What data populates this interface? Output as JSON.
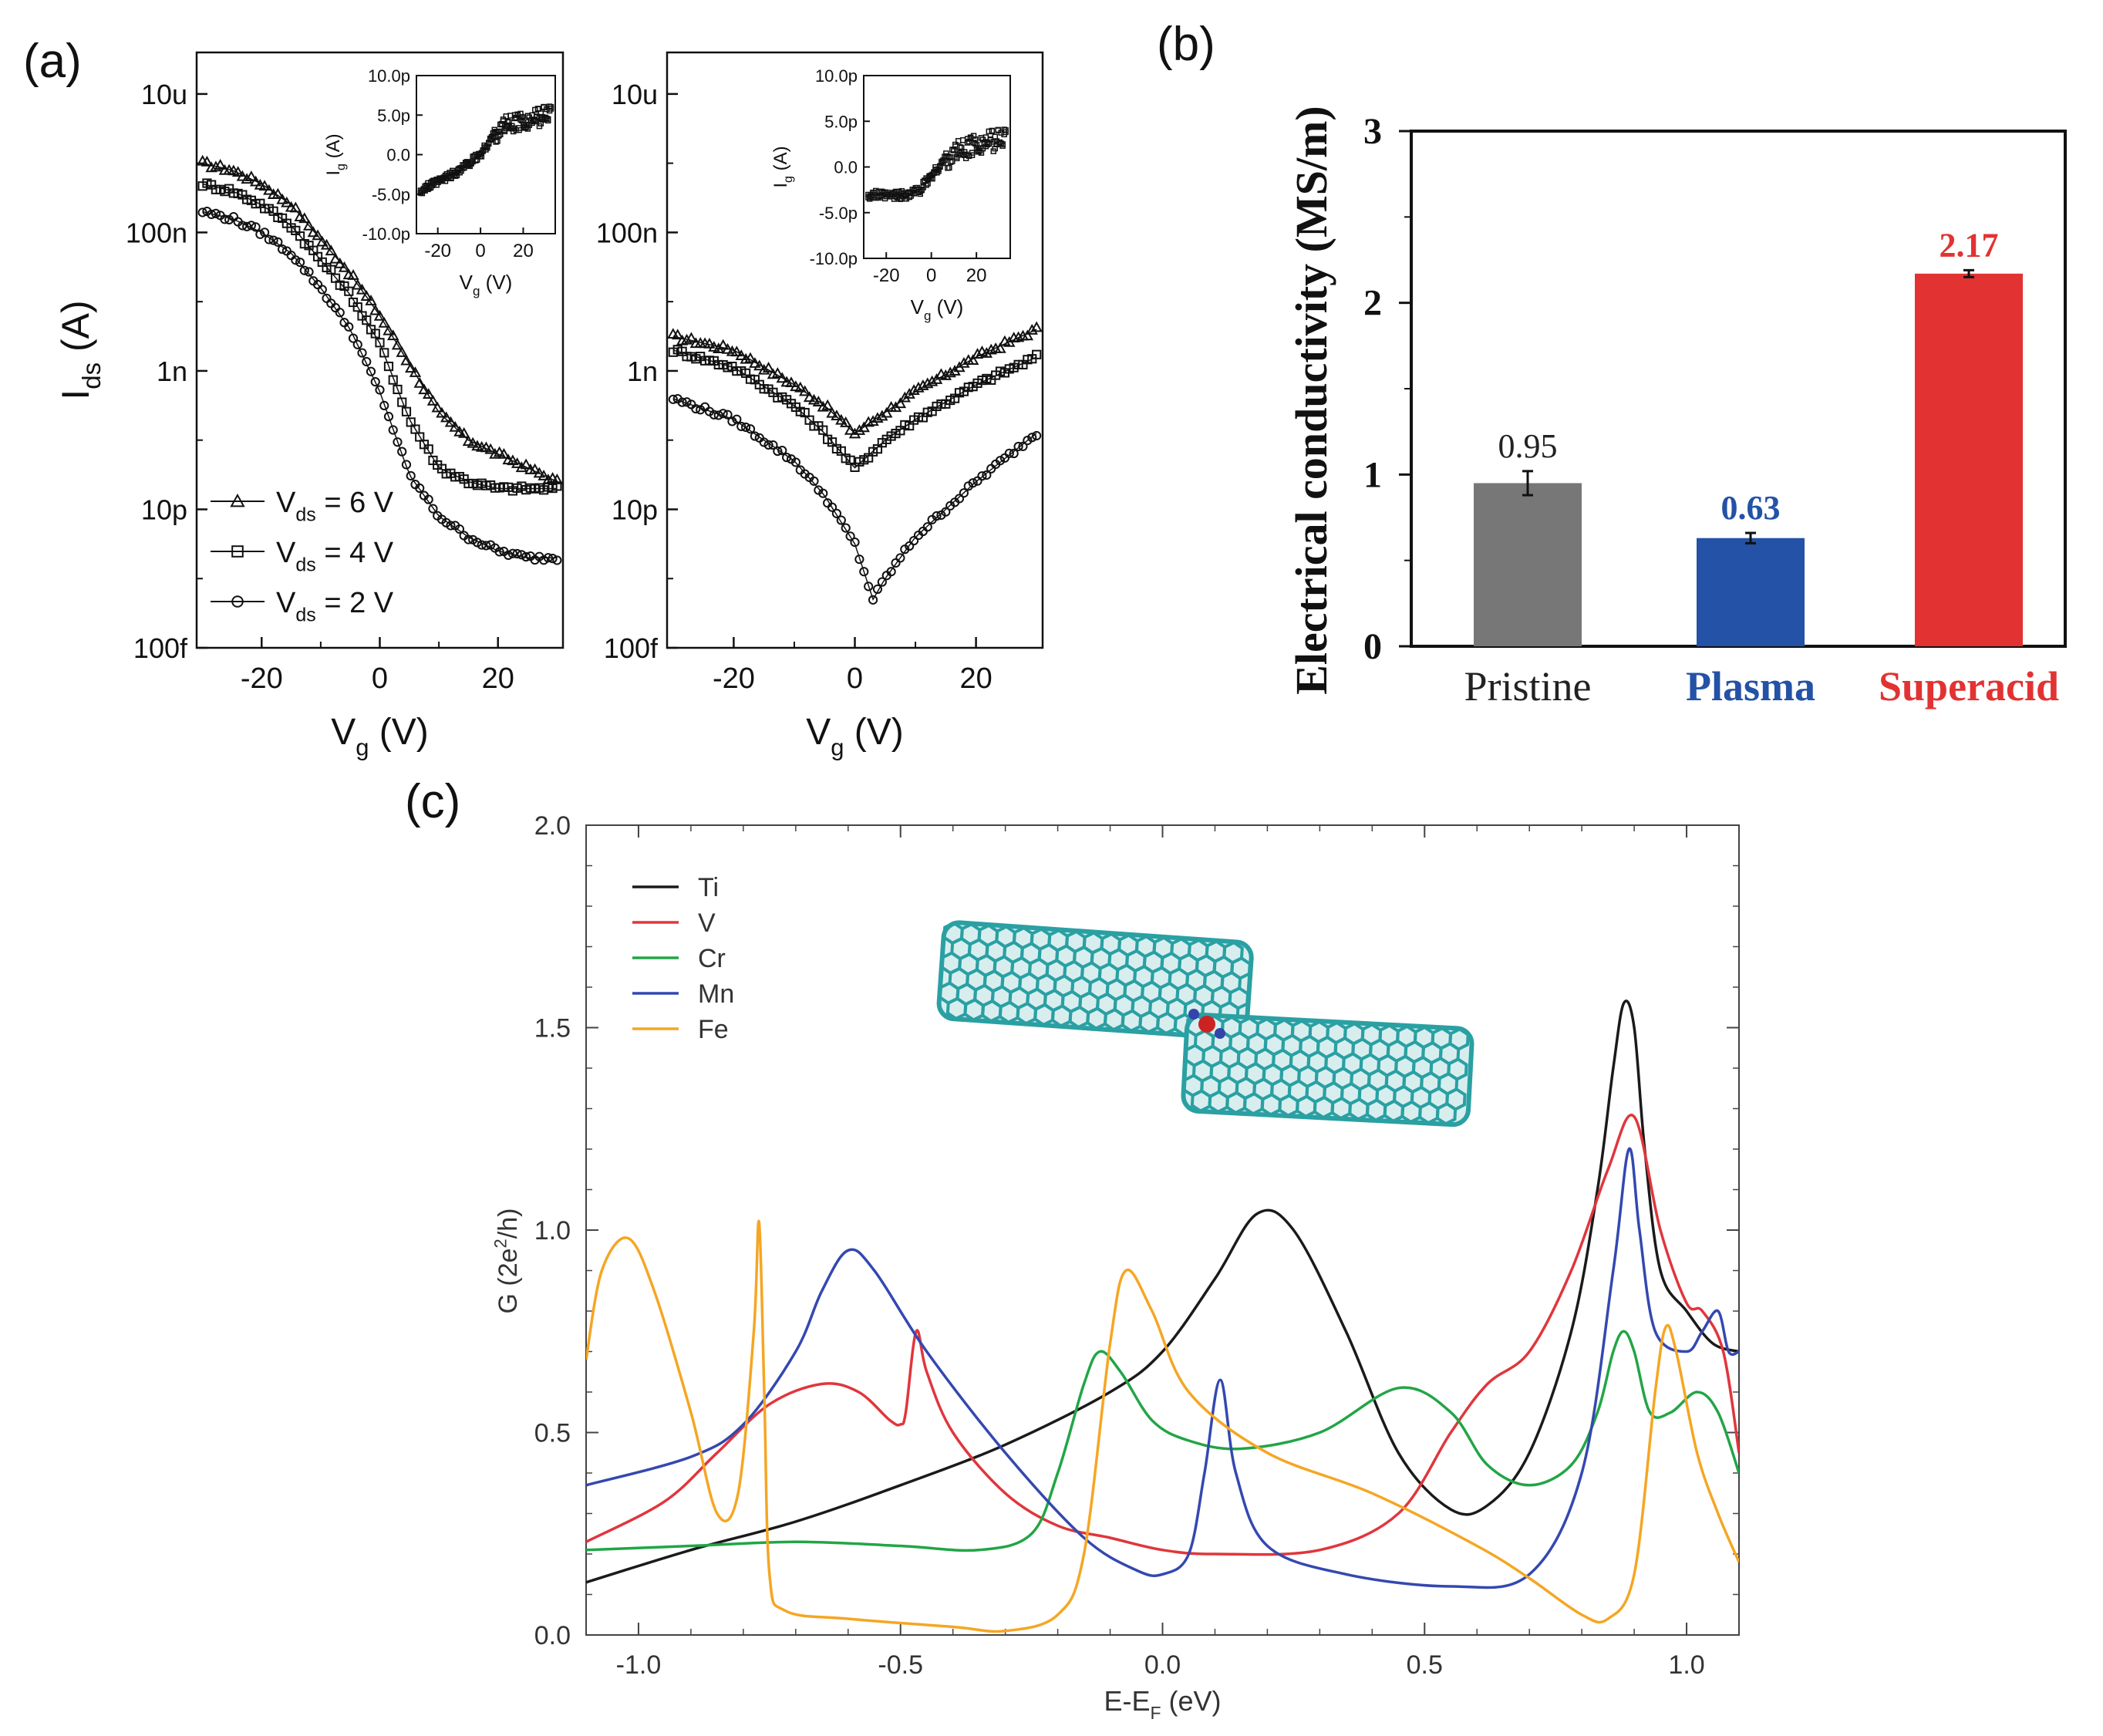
{
  "panel_labels": {
    "a": "(a)",
    "b": "(b)",
    "c": "(c)"
  },
  "colors": {
    "black": "#111111",
    "gray_bar": "#777777",
    "blue_bar": "#2352a6",
    "red_bar": "#e23232",
    "line_Ti": "#1a1a1a",
    "line_V": "#e0363c",
    "line_Cr": "#22a546",
    "line_Mn": "#3448b0",
    "line_Fe": "#f5a623",
    "tube": "#2aa0a3"
  },
  "chart_data": [
    {
      "id": "a-left",
      "type": "line",
      "title": "",
      "xlabel": "V",
      "xlabel_sub": "g",
      "xlabel_unit": "(V)",
      "ylabel": "I",
      "ylabel_sub": "ds",
      "ylabel_unit": "(A)",
      "xlim": [
        -31,
        31
      ],
      "ylim_log10": [
        -13,
        -4.4
      ],
      "y_ticks": [
        {
          "v": -5,
          "label": "10u"
        },
        {
          "v": -7,
          "label": "100n"
        },
        {
          "v": -9,
          "label": "1n"
        },
        {
          "v": -11,
          "label": "10p"
        },
        {
          "v": -13,
          "label": "100f"
        }
      ],
      "x_ticks": [
        {
          "v": -20,
          "label": "-20"
        },
        {
          "v": 0,
          "label": "0"
        },
        {
          "v": 20,
          "label": "20"
        }
      ],
      "legend": [
        {
          "name": "V",
          "sub": "ds",
          "rest": " = 6 V",
          "marker": "triangle"
        },
        {
          "name": "V",
          "sub": "ds",
          "rest": " = 4 V",
          "marker": "square"
        },
        {
          "name": "V",
          "sub": "ds",
          "rest": " = 2 V",
          "marker": "circle"
        }
      ],
      "series": [
        {
          "name": "Vds = 6 V",
          "marker": "triangle",
          "x": [
            -30,
            -25,
            -20,
            -15,
            -10,
            -5,
            0,
            5,
            10,
            15,
            20,
            25,
            30
          ],
          "log10_y": [
            -6.0,
            -6.1,
            -6.3,
            -6.6,
            -7.1,
            -7.6,
            -8.2,
            -8.9,
            -9.6,
            -10.0,
            -10.2,
            -10.4,
            -10.6
          ]
        },
        {
          "name": "Vds = 4 V",
          "marker": "square",
          "x": [
            -30,
            -25,
            -20,
            -15,
            -10,
            -5,
            0,
            5,
            10,
            15,
            20,
            25,
            30
          ],
          "log10_y": [
            -6.3,
            -6.4,
            -6.6,
            -6.9,
            -7.4,
            -7.9,
            -8.6,
            -9.7,
            -10.4,
            -10.6,
            -10.7,
            -10.7,
            -10.7
          ]
        },
        {
          "name": "Vds = 2 V",
          "marker": "circle",
          "x": [
            -30,
            -25,
            -20,
            -15,
            -10,
            -5,
            0,
            5,
            10,
            15,
            20,
            25,
            30
          ],
          "log10_y": [
            -6.7,
            -6.8,
            -7.0,
            -7.3,
            -7.8,
            -8.4,
            -9.3,
            -10.5,
            -11.1,
            -11.4,
            -11.6,
            -11.7,
            -11.7
          ]
        }
      ],
      "inset": {
        "xlabel": "V",
        "xlabel_sub": "g",
        "xlabel_unit": "(V)",
        "ylabel": "I",
        "ylabel_sub": "g",
        "ylabel_unit": "(A)",
        "xlim": [
          -30,
          35
        ],
        "ylim": [
          -10,
          10
        ],
        "x_ticks": [
          {
            "v": -20,
            "label": "-20"
          },
          {
            "v": 0,
            "label": "0"
          },
          {
            "v": 20,
            "label": "20"
          }
        ],
        "y_ticks": [
          {
            "v": 10,
            "label": "10.0p"
          },
          {
            "v": 5,
            "label": "5.0p"
          },
          {
            "v": 0,
            "label": "0.0"
          },
          {
            "v": -5,
            "label": "-5.0p"
          },
          {
            "v": -10,
            "label": "-10.0p"
          }
        ],
        "x": [
          -28,
          -20,
          -10,
          0,
          5,
          10,
          15,
          20,
          25,
          30,
          33
        ],
        "y": [
          -4.5,
          -3.5,
          -2,
          0,
          2,
          3.5,
          4,
          4.2,
          4.5,
          5,
          5.5
        ]
      }
    },
    {
      "id": "a-right",
      "type": "line",
      "title": "",
      "xlabel": "V",
      "xlabel_sub": "g",
      "xlabel_unit": "(V)",
      "xlim": [
        -31,
        31
      ],
      "ylim_log10": [
        -13,
        -4.4
      ],
      "y_ticks": [
        {
          "v": -5,
          "label": "10u"
        },
        {
          "v": -7,
          "label": "100n"
        },
        {
          "v": -9,
          "label": "1n"
        },
        {
          "v": -11,
          "label": "10p"
        },
        {
          "v": -13,
          "label": "100f"
        }
      ],
      "x_ticks": [
        {
          "v": -20,
          "label": "-20"
        },
        {
          "v": 0,
          "label": "0"
        },
        {
          "v": 20,
          "label": "20"
        }
      ],
      "series": [
        {
          "name": "Vds = 6 V",
          "marker": "triangle",
          "x": [
            -30,
            -20,
            -10,
            -5,
            0,
            5,
            10,
            20,
            30
          ],
          "log10_y": [
            -8.5,
            -8.7,
            -9.2,
            -9.5,
            -9.9,
            -9.6,
            -9.3,
            -8.8,
            -8.4
          ]
        },
        {
          "name": "Vds = 4 V",
          "marker": "square",
          "x": [
            -30,
            -20,
            -10,
            -5,
            0,
            5,
            10,
            20,
            30
          ],
          "log10_y": [
            -8.7,
            -8.95,
            -9.5,
            -9.9,
            -10.4,
            -10.0,
            -9.7,
            -9.2,
            -8.8
          ]
        },
        {
          "name": "Vds = 2 V",
          "marker": "circle",
          "x": [
            -30,
            -20,
            -10,
            -5,
            0,
            3,
            5,
            10,
            20,
            30
          ],
          "log10_y": [
            -9.4,
            -9.7,
            -10.3,
            -10.8,
            -11.5,
            -12.3,
            -12.0,
            -11.4,
            -10.6,
            -9.9
          ]
        }
      ],
      "inset": {
        "xlabel": "V",
        "xlabel_sub": "g",
        "xlabel_unit": "(V)",
        "ylabel": "I",
        "ylabel_sub": "g",
        "ylabel_unit": "(A)",
        "xlim": [
          -30,
          35
        ],
        "ylim": [
          -10,
          10
        ],
        "x_ticks": [
          {
            "v": -20,
            "label": "-20"
          },
          {
            "v": 0,
            "label": "0"
          },
          {
            "v": 20,
            "label": "20"
          }
        ],
        "y_ticks": [
          {
            "v": 10,
            "label": "10.0p"
          },
          {
            "v": 5,
            "label": "5.0p"
          },
          {
            "v": 0,
            "label": "0.0"
          },
          {
            "v": -5,
            "label": "-5.0p"
          },
          {
            "v": -10,
            "label": "-10.0p"
          }
        ],
        "x": [
          -28,
          -20,
          -10,
          -5,
          0,
          5,
          10,
          20,
          30,
          33
        ],
        "y": [
          -3,
          -3.2,
          -3,
          -2.5,
          -1,
          0.5,
          1.5,
          2.5,
          3,
          3.5
        ]
      }
    },
    {
      "id": "b",
      "type": "bar",
      "title": "",
      "ylabel": "Electrical conductivity (MS/m)",
      "ylim": [
        0,
        3
      ],
      "y_ticks": [
        {
          "v": 0,
          "label": "0"
        },
        {
          "v": 1,
          "label": "1"
        },
        {
          "v": 2,
          "label": "2"
        },
        {
          "v": 3,
          "label": "3"
        }
      ],
      "categories": [
        "Pristine",
        "Plasma",
        "Superacid"
      ],
      "values": [
        0.95,
        0.63,
        2.17
      ],
      "value_labels": [
        "0.95",
        "0.63",
        "2.17"
      ],
      "errors": [
        0.07,
        0.03,
        0.02
      ]
    },
    {
      "id": "c",
      "type": "line",
      "title": "",
      "xlabel": "E-E",
      "xlabel_sub": "F",
      "xlabel_unit": " (eV)",
      "ylabel": "G (2e",
      "ylabel_sup": "2",
      "ylabel_rest": "/h)",
      "xlim": [
        -1.1,
        1.1
      ],
      "ylim": [
        0,
        2.0
      ],
      "x_ticks": [
        {
          "v": -1.0,
          "label": "-1.0"
        },
        {
          "v": -0.5,
          "label": "-0.5"
        },
        {
          "v": 0.0,
          "label": "0.0"
        },
        {
          "v": 0.5,
          "label": "0.5"
        },
        {
          "v": 1.0,
          "label": "1.0"
        }
      ],
      "y_ticks": [
        {
          "v": 0.0,
          "label": "0.0"
        },
        {
          "v": 0.5,
          "label": "0.5"
        },
        {
          "v": 1.0,
          "label": "1.0"
        },
        {
          "v": 1.5,
          "label": "1.5"
        },
        {
          "v": 2.0,
          "label": "2.0"
        }
      ],
      "legend": [
        "Ti",
        "V",
        "Cr",
        "Mn",
        "Fe"
      ],
      "series": [
        {
          "name": "Ti",
          "x": [
            -1.1,
            -0.9,
            -0.7,
            -0.5,
            -0.3,
            -0.1,
            0.0,
            0.1,
            0.18,
            0.25,
            0.35,
            0.45,
            0.55,
            0.62,
            0.7,
            0.78,
            0.83,
            0.86,
            0.88,
            0.9,
            0.92,
            0.95,
            1.0,
            1.05,
            1.1
          ],
          "y": [
            0.13,
            0.21,
            0.28,
            0.37,
            0.47,
            0.6,
            0.7,
            0.88,
            1.04,
            1.0,
            0.75,
            0.45,
            0.31,
            0.32,
            0.45,
            0.75,
            1.1,
            1.4,
            1.56,
            1.5,
            1.2,
            0.9,
            0.8,
            0.72,
            0.7
          ]
        },
        {
          "name": "V",
          "x": [
            -1.1,
            -0.95,
            -0.85,
            -0.75,
            -0.65,
            -0.58,
            -0.52,
            -0.5,
            -0.49,
            -0.47,
            -0.45,
            -0.4,
            -0.3,
            -0.2,
            -0.1,
            0.0,
            0.1,
            0.3,
            0.45,
            0.55,
            0.62,
            0.7,
            0.78,
            0.85,
            0.9,
            0.95,
            1.0,
            1.03,
            1.07,
            1.1
          ],
          "y": [
            0.23,
            0.33,
            0.45,
            0.57,
            0.62,
            0.6,
            0.53,
            0.52,
            0.55,
            0.75,
            0.65,
            0.5,
            0.35,
            0.27,
            0.24,
            0.21,
            0.2,
            0.21,
            0.3,
            0.5,
            0.62,
            0.7,
            0.9,
            1.15,
            1.28,
            1.0,
            0.82,
            0.8,
            0.7,
            0.45
          ]
        },
        {
          "name": "Cr",
          "x": [
            -1.1,
            -0.9,
            -0.7,
            -0.5,
            -0.35,
            -0.25,
            -0.2,
            -0.15,
            -0.12,
            -0.08,
            -0.02,
            0.05,
            0.15,
            0.3,
            0.45,
            0.55,
            0.62,
            0.7,
            0.78,
            0.83,
            0.86,
            0.88,
            0.9,
            0.93,
            0.97,
            1.02,
            1.06,
            1.1
          ],
          "y": [
            0.21,
            0.22,
            0.23,
            0.22,
            0.21,
            0.25,
            0.4,
            0.62,
            0.7,
            0.65,
            0.53,
            0.48,
            0.46,
            0.5,
            0.61,
            0.55,
            0.42,
            0.37,
            0.42,
            0.55,
            0.7,
            0.75,
            0.7,
            0.55,
            0.55,
            0.6,
            0.55,
            0.4
          ]
        },
        {
          "name": "Mn",
          "x": [
            -1.1,
            -0.9,
            -0.8,
            -0.7,
            -0.65,
            -0.6,
            -0.55,
            -0.45,
            -0.3,
            -0.15,
            -0.05,
            0.0,
            0.05,
            0.08,
            0.11,
            0.14,
            0.2,
            0.35,
            0.55,
            0.7,
            0.8,
            0.86,
            0.89,
            0.91,
            0.94,
            1.0,
            1.03,
            1.06,
            1.08,
            1.1
          ],
          "y": [
            0.37,
            0.44,
            0.52,
            0.7,
            0.85,
            0.95,
            0.9,
            0.7,
            0.45,
            0.24,
            0.16,
            0.15,
            0.2,
            0.4,
            0.63,
            0.4,
            0.22,
            0.15,
            0.12,
            0.15,
            0.4,
            0.9,
            1.2,
            1.0,
            0.75,
            0.7,
            0.75,
            0.8,
            0.7,
            0.7
          ]
        },
        {
          "name": "Fe",
          "x": [
            -1.1,
            -1.07,
            -1.02,
            -0.97,
            -0.9,
            -0.85,
            -0.81,
            -0.78,
            -0.77,
            -0.76,
            -0.75,
            -0.72,
            -0.6,
            -0.4,
            -0.3,
            -0.2,
            -0.15,
            -0.1,
            -0.07,
            -0.02,
            0.05,
            0.2,
            0.4,
            0.6,
            0.7,
            0.8,
            0.85,
            0.9,
            0.94,
            0.96,
            0.98,
            1.02,
            1.06,
            1.1
          ],
          "y": [
            0.68,
            0.9,
            0.98,
            0.85,
            0.55,
            0.3,
            0.35,
            0.75,
            1.02,
            0.6,
            0.15,
            0.06,
            0.04,
            0.02,
            0.01,
            0.05,
            0.2,
            0.72,
            0.9,
            0.8,
            0.6,
            0.45,
            0.35,
            0.22,
            0.14,
            0.05,
            0.04,
            0.15,
            0.6,
            0.76,
            0.7,
            0.45,
            0.3,
            0.18
          ]
        }
      ]
    }
  ]
}
